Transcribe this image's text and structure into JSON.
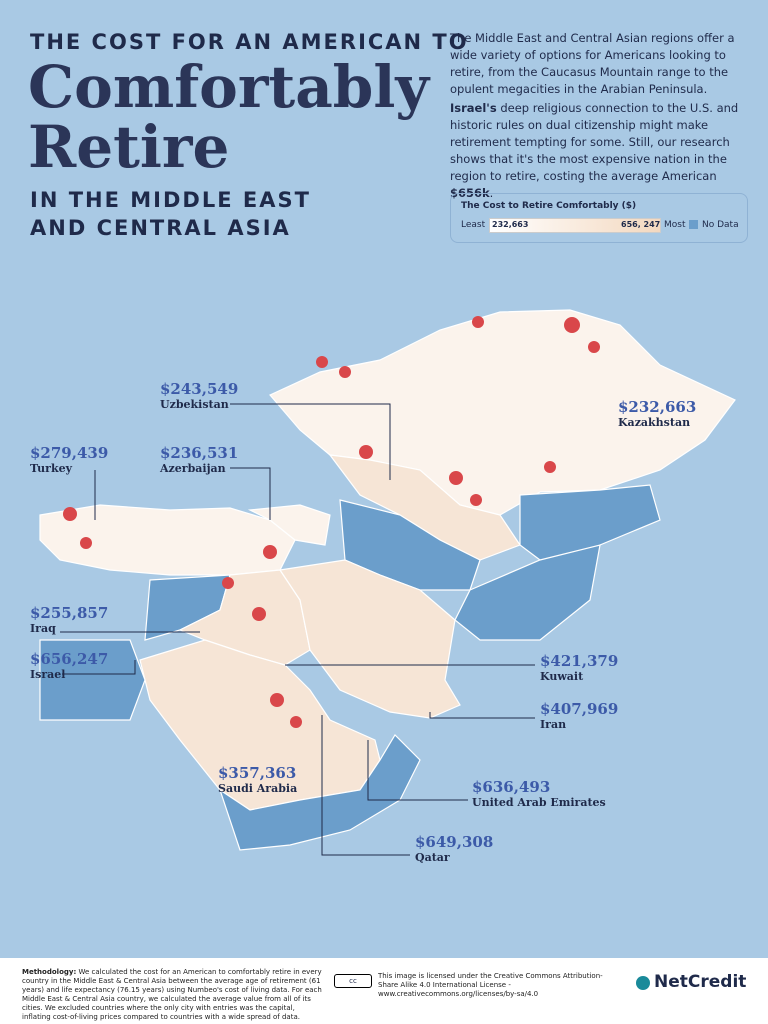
{
  "header": {
    "kicker": "THE COST FOR AN AMERICAN TO",
    "title_line1": "Comfortably",
    "title_line2": "Retire",
    "subtitle": "IN THE MIDDLE EAST AND CENTRAL ASIA"
  },
  "intro": {
    "paragraph1": "The Middle East and Central Asian regions offer a wide variety of options for Americans looking to retire, from the Caucasus Mountain range to the opulent megacities in the Arabian Peninsula.",
    "paragraph2": [
      "Israel's",
      " deep religious connection to the U.S. and historic rules on dual citizenship might make retirement tempting for some. Still, our research shows that it's the most expensive nation in the region to retire, costing the average American ",
      "$656k",
      "."
    ]
  },
  "legend": {
    "title": "The Cost to Retire Comfortably ($)",
    "least": "Least",
    "min": "232,663",
    "max": "656, 247",
    "most": "Most",
    "no_data": "No Data"
  },
  "countries": [
    {
      "value": "$243,549",
      "name": "Uzbekistan"
    },
    {
      "value": "$232,663",
      "name": "Kazakhstan"
    },
    {
      "value": "$279,439",
      "name": "Turkey"
    },
    {
      "value": "$236,531",
      "name": "Azerbaijan"
    },
    {
      "value": "$255,857",
      "name": "Iraq"
    },
    {
      "value": "$656,247",
      "name": "Israel"
    },
    {
      "value": "$421,379",
      "name": "Kuwait"
    },
    {
      "value": "$407,969",
      "name": "Iran"
    },
    {
      "value": "$357,363",
      "name": "Saudi Arabia"
    },
    {
      "value": "$636,493",
      "name": "United Arab Emirates"
    },
    {
      "value": "$649,308",
      "name": "Qatar"
    }
  ],
  "footer": {
    "methodology_label": "Methodology:",
    "methodology_text": "We calculated the cost for an American to comfortably retire in every country in the Middle East & Central Asia between the average age of retirement (61 years) and life expectancy (76.15 years) using Numbeo's cost of living data. For each Middle East & Central Asia country, we calculated the average value from all of its cities. We excluded countries where the only city with entries was the capital, inflating cost-of-living prices compared to countries with a wide spread of data.",
    "license": "This image is licensed under the Creative Commons Attribution-Share Alike 4.0 International License - www.creativecommons.org/licenses/by-sa/4.0",
    "brand": "NetCredit"
  }
}
